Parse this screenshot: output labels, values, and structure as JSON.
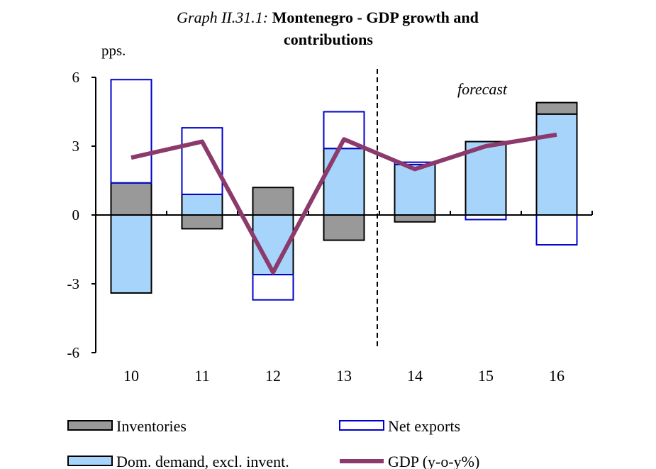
{
  "chart_data": {
    "type": "bar",
    "title_prefix": "Graph II.31.1:",
    "title_line1": "Montenegro - GDP growth and",
    "title_line2": "contributions",
    "ylabel": "pps.",
    "ylim": [
      -6,
      6
    ],
    "yticks": [
      6,
      3,
      0,
      -3,
      -6
    ],
    "ytick_labels": [
      "6",
      "3",
      "0",
      "-3",
      "-6"
    ],
    "categories": [
      "10",
      "11",
      "12",
      "13",
      "14",
      "15",
      "16"
    ],
    "forecast_label": "forecast",
    "forecast_from_index": 4,
    "series": [
      {
        "name": "Dom. demand, excl. invent.",
        "kind": "bar",
        "color": "#a6d4fa",
        "stroke": "#000000",
        "values": [
          -3.4,
          0.9,
          -2.6,
          2.9,
          2.2,
          3.2,
          4.4
        ]
      },
      {
        "name": "Inventories",
        "kind": "bar",
        "color": "#999999",
        "stroke": "#000000",
        "values": [
          1.4,
          -0.6,
          1.2,
          -1.1,
          -0.3,
          0.0,
          0.5
        ]
      },
      {
        "name": "Net exports",
        "kind": "bar",
        "color": "#ffffff",
        "stroke": "#0000cc",
        "values": [
          4.5,
          2.9,
          -1.1,
          1.6,
          0.1,
          -0.2,
          -1.3
        ]
      },
      {
        "name": "GDP (y-o-y%)",
        "kind": "line",
        "color": "#8b3a6b",
        "values": [
          2.5,
          3.2,
          -2.5,
          3.3,
          2.0,
          3.0,
          3.5
        ]
      }
    ],
    "legend": {
      "placement": "bottom",
      "items": [
        "Inventories",
        "Net exports",
        "Dom. demand, excl. invent.",
        "GDP (y-o-y%)"
      ]
    }
  }
}
